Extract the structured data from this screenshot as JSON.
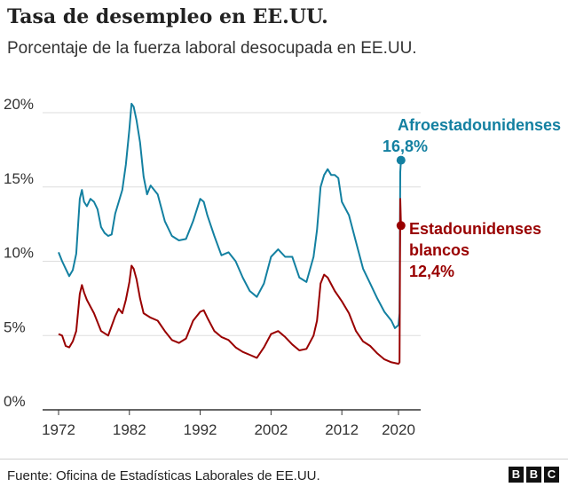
{
  "header": {
    "title": "Tasa de desempleo en EE.UU.",
    "subtitle": "Porcentaje de la fuerza laboral desocupada en EE.UU."
  },
  "footer": {
    "source": "Fuente: Oficina de Estadísticas Laborales de EE.UU.",
    "logo": [
      "B",
      "B",
      "C"
    ]
  },
  "colors": {
    "series_a": "#1380A1",
    "series_b": "#990000",
    "grid": "#dddddd",
    "axis": "#333333"
  },
  "chart_data": {
    "type": "line",
    "title": "Tasa de desempleo en EE.UU.",
    "subtitle": "Porcentaje de la fuerza laboral desocupada en EE.UU.",
    "xlabel": "",
    "ylabel": "",
    "xlim": [
      1972,
      2020.5
    ],
    "ylim": [
      0,
      20
    ],
    "x_ticks": [
      1972,
      1982,
      1992,
      2002,
      2012,
      2020
    ],
    "y_ticks": [
      0,
      5,
      10,
      15,
      20
    ],
    "y_tick_labels": [
      "0%",
      "5%",
      "10%",
      "15%",
      "20%"
    ],
    "grid": true,
    "series": [
      {
        "name": "Afroestadounidenses",
        "label_lines": [
          "Afroestadounidenses",
          "16,8%"
        ],
        "last_value": 16.8,
        "x": [
          1972,
          1972.5,
          1973,
          1973.5,
          1974,
          1974.5,
          1975,
          1975.3,
          1975.6,
          1976,
          1976.5,
          1977,
          1977.5,
          1978,
          1978.5,
          1979,
          1979.5,
          1980,
          1980.5,
          1981,
          1981.5,
          1982,
          1982.3,
          1982.6,
          1983,
          1983.5,
          1984,
          1984.5,
          1985,
          1986,
          1987,
          1988,
          1989,
          1990,
          1991,
          1992,
          1992.5,
          1993,
          1994,
          1995,
          1996,
          1997,
          1998,
          1999,
          2000,
          2001,
          2002,
          2003,
          2004,
          2005,
          2006,
          2007,
          2008,
          2008.5,
          2009,
          2009.5,
          2010,
          2010.5,
          2011,
          2011.5,
          2012,
          2013,
          2014,
          2015,
          2016,
          2017,
          2018,
          2019,
          2019.5,
          2020,
          2020.15,
          2020.25,
          2020.35
        ],
        "values": [
          10.6,
          10.0,
          9.5,
          9.0,
          9.4,
          10.5,
          14.2,
          14.8,
          14.0,
          13.7,
          14.2,
          14.0,
          13.5,
          12.3,
          11.9,
          11.7,
          11.8,
          13.2,
          14.0,
          14.8,
          16.5,
          18.9,
          20.6,
          20.4,
          19.5,
          18.0,
          15.7,
          14.5,
          15.1,
          14.5,
          12.7,
          11.7,
          11.4,
          11.5,
          12.7,
          14.2,
          14.0,
          13.1,
          11.7,
          10.4,
          10.6,
          10.0,
          8.9,
          8.0,
          7.6,
          8.5,
          10.3,
          10.8,
          10.3,
          10.3,
          8.9,
          8.6,
          10.3,
          12.1,
          15.0,
          15.8,
          16.2,
          15.8,
          15.8,
          15.6,
          14.0,
          13.1,
          11.3,
          9.5,
          8.5,
          7.5,
          6.6,
          6.0,
          5.5,
          5.7,
          6.5,
          16.0,
          16.8
        ]
      },
      {
        "name": "Estadounidenses blancos",
        "label_lines": [
          "Estadounidenses",
          "blancos",
          "12,4%"
        ],
        "last_value": 12.4,
        "x": [
          1972,
          1972.5,
          1973,
          1973.5,
          1974,
          1974.5,
          1975,
          1975.3,
          1975.6,
          1976,
          1977,
          1978,
          1979,
          1980,
          1980.5,
          1981,
          1981.5,
          1982,
          1982.3,
          1982.6,
          1983,
          1983.5,
          1984,
          1985,
          1986,
          1987,
          1988,
          1989,
          1990,
          1991,
          1992,
          1992.5,
          1993,
          1994,
          1995,
          1996,
          1997,
          1998,
          1999,
          2000,
          2001,
          2002,
          2003,
          2004,
          2005,
          2006,
          2007,
          2008,
          2008.5,
          2009,
          2009.5,
          2010,
          2011,
          2012,
          2013,
          2014,
          2015,
          2016,
          2017,
          2018,
          2019,
          2020,
          2020.15,
          2020.25,
          2020.35
        ],
        "values": [
          5.1,
          5.0,
          4.3,
          4.2,
          4.6,
          5.3,
          7.8,
          8.4,
          7.9,
          7.4,
          6.5,
          5.3,
          5.0,
          6.3,
          6.8,
          6.5,
          7.4,
          8.6,
          9.7,
          9.5,
          8.8,
          7.5,
          6.5,
          6.2,
          6.0,
          5.3,
          4.7,
          4.5,
          4.8,
          6.0,
          6.6,
          6.7,
          6.2,
          5.3,
          4.9,
          4.7,
          4.2,
          3.9,
          3.7,
          3.5,
          4.2,
          5.1,
          5.3,
          4.9,
          4.4,
          4.0,
          4.1,
          5.0,
          6.0,
          8.5,
          9.1,
          8.9,
          8.0,
          7.3,
          6.5,
          5.3,
          4.6,
          4.3,
          3.8,
          3.4,
          3.2,
          3.1,
          3.2,
          14.2,
          12.4
        ]
      }
    ]
  }
}
